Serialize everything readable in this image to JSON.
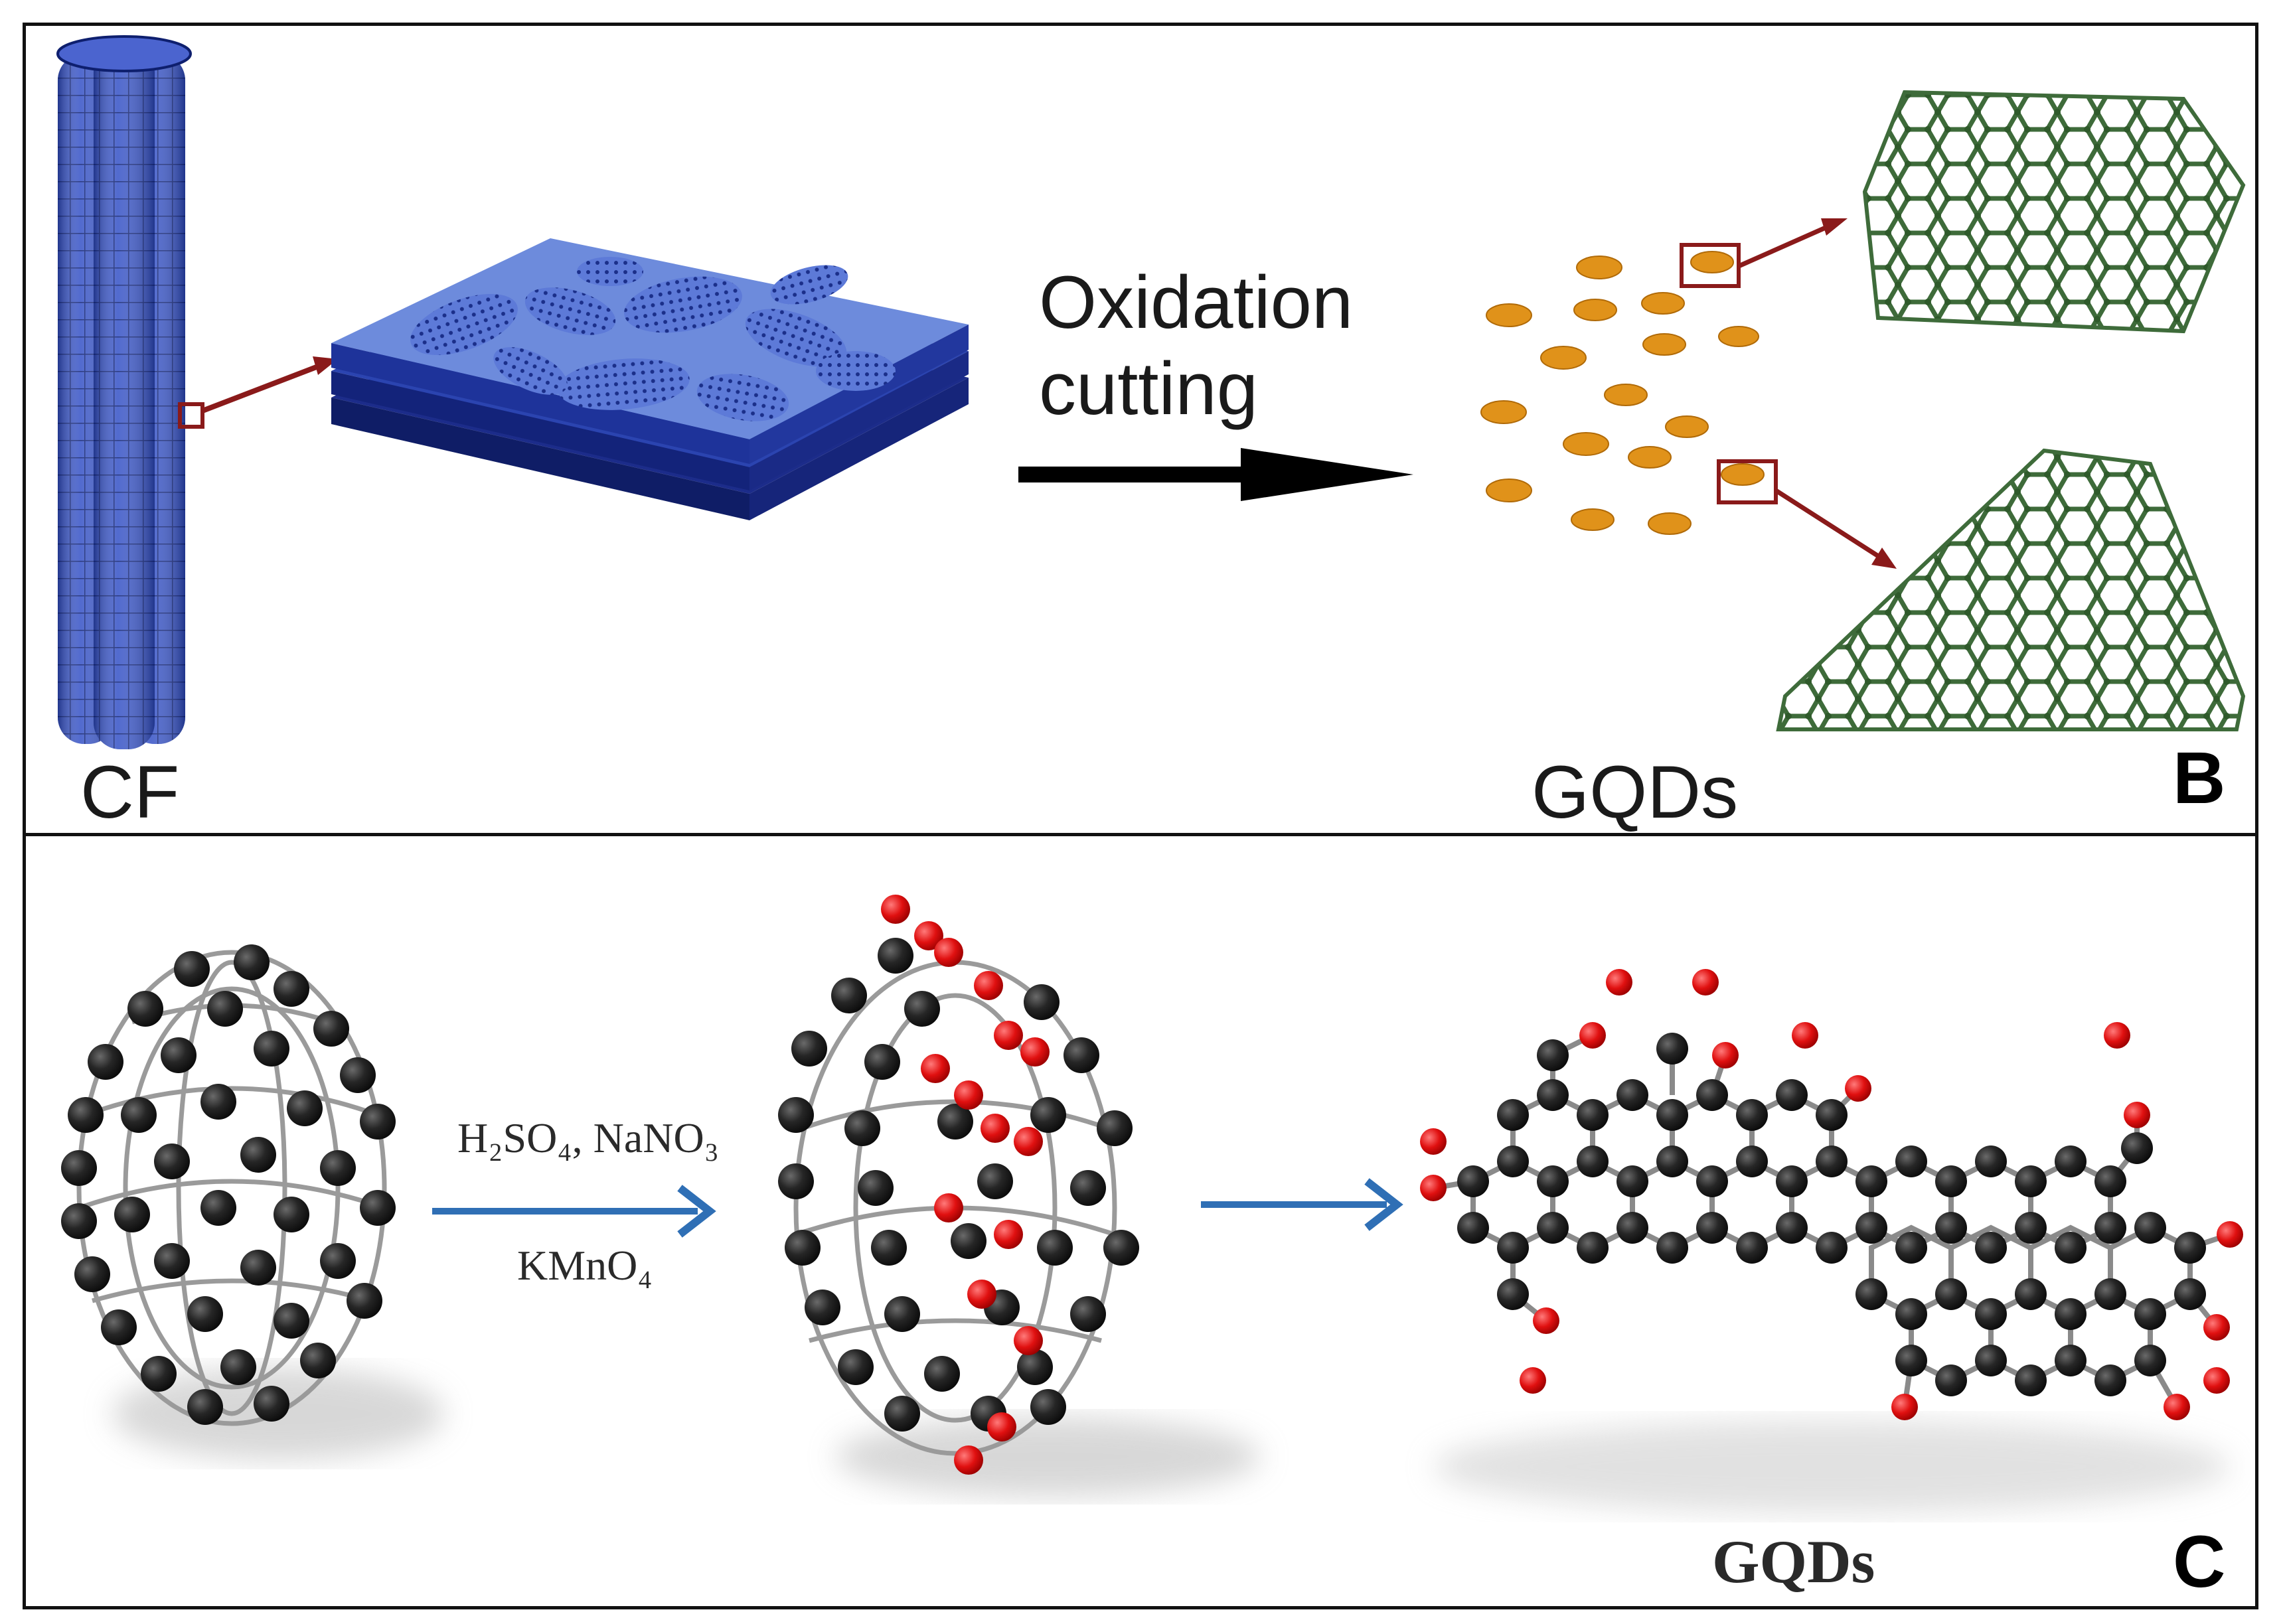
{
  "panel_b": {
    "cf_label": "CF",
    "oxidation_line1": "Oxidation",
    "oxidation_line2": "cutting",
    "gqds_label": "GQDs",
    "panel_letter": "B"
  },
  "panel_c": {
    "reagent_line1": "H₂SO₄, NaNO₃",
    "reagent_line2": "KMnO₄",
    "gqds_label": "GQDs",
    "panel_letter": "C"
  },
  "colors": {
    "fiber_blue": "#2d46b8",
    "sheet_blue": "#3558c8",
    "dot_orange": "#e0921a",
    "arrow_red": "#8a1a1a",
    "lattice_green": "#3e6b3a",
    "carbon": "#1c1c1c",
    "oxygen": "#e01010",
    "reaction_arrow": "#2f6fb5"
  }
}
